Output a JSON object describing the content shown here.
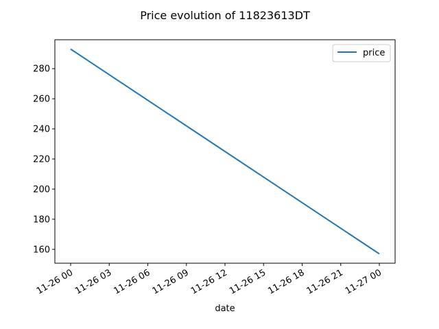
{
  "chart_data": {
    "type": "line",
    "title": "Price evolution of 11823613DT",
    "xlabel": "date",
    "ylabel": "",
    "x": [
      "2021-11-26 00:00",
      "2021-11-27 00:00"
    ],
    "x_tick_labels": [
      "11-26 00",
      "11-26 03",
      "11-26 06",
      "11-26 09",
      "11-26 12",
      "11-26 15",
      "11-26 18",
      "11-26 21",
      "11-27 00"
    ],
    "y_ticks": [
      160,
      180,
      200,
      220,
      240,
      260,
      280
    ],
    "ylim": [
      150.8,
      299.2
    ],
    "series": [
      {
        "name": "price",
        "values": [
          293,
          157
        ],
        "color": "#1f77b4"
      }
    ],
    "grid": false,
    "legend_position": "top-right"
  }
}
